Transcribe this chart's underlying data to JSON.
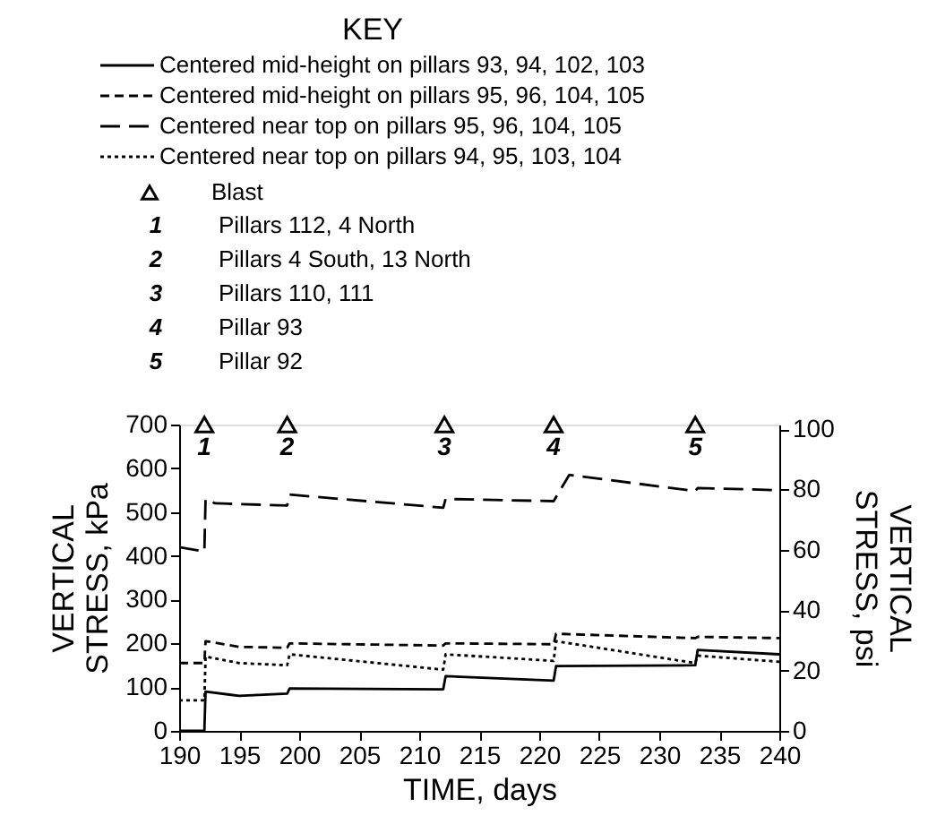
{
  "chart_data": {
    "type": "line",
    "xlabel": "TIME, days",
    "ylabel": "VERTICAL STRESS, kPa",
    "y2label": "VERTICAL STRESS, psi",
    "legend_title": "KEY",
    "xlim": [
      190,
      240
    ],
    "xticks": [
      190,
      195,
      200,
      205,
      210,
      215,
      220,
      225,
      230,
      235,
      240
    ],
    "ylim": [
      0,
      700
    ],
    "yticks": [
      0,
      100,
      200,
      300,
      400,
      500,
      600,
      700
    ],
    "y2lim": [
      0,
      101.5
    ],
    "y2ticks": [
      0,
      20,
      40,
      60,
      80,
      100
    ],
    "grid": false,
    "legend": "top",
    "series": [
      {
        "name": "Centered mid-height on pillars 93, 94, 102, 103",
        "color": "#000000",
        "line_style": "solid",
        "x": [
          190,
          192.1,
          192.2,
          195,
          199,
          199.2,
          212,
          212.2,
          221.2,
          221.4,
          233,
          233.2,
          240
        ],
        "values": [
          0,
          0,
          90,
          80,
          85,
          97,
          95,
          125,
          115,
          148,
          150,
          185,
          175
        ]
      },
      {
        "name": "Centered mid-height on pillars 95, 96, 104, 105",
        "color": "#000000",
        "line_style": "dashed",
        "x": [
          190,
          192.1,
          192.2,
          195,
          199,
          199.2,
          212,
          212.2,
          221.2,
          221.4,
          233,
          233.2,
          240
        ],
        "values": [
          155,
          155,
          205,
          192,
          190,
          200,
          195,
          200,
          198,
          222,
          212,
          215,
          212
        ]
      },
      {
        "name": "Centered near top on pillars 95, 96, 104, 105",
        "color": "#000000",
        "line_style": "dashed",
        "x": [
          190,
          192.1,
          192.2,
          193,
          199,
          199.2,
          212,
          212.2,
          221.2,
          222.5,
          233,
          233.2,
          240
        ],
        "values": [
          420,
          410,
          530,
          520,
          515,
          540,
          510,
          530,
          525,
          585,
          548,
          555,
          550
        ]
      },
      {
        "name": "Centered near top on pillars 94, 95, 103, 104",
        "color": "#000000",
        "line_style": "dotted",
        "x": [
          190,
          192.1,
          192.2,
          195,
          199,
          199.2,
          212,
          212.2,
          221.2,
          221.4,
          233,
          233.2,
          240
        ],
        "values": [
          70,
          70,
          170,
          155,
          150,
          175,
          140,
          175,
          160,
          205,
          155,
          172,
          158
        ]
      },
      {
        "name": "Blast",
        "type": "scatter",
        "marker": "triangle",
        "color": "#000000",
        "x": [
          192.1,
          199,
          212.1,
          221.2,
          233
        ],
        "values": [
          700,
          700,
          700,
          700,
          700
        ]
      }
    ],
    "annotations": [
      {
        "text": "1",
        "x": 192.1,
        "y": 700
      },
      {
        "text": "2",
        "x": 199,
        "y": 700
      },
      {
        "text": "3",
        "x": 212.1,
        "y": 700
      },
      {
        "text": "4",
        "x": 221.2,
        "y": 700
      },
      {
        "text": "5",
        "x": 233,
        "y": 700
      },
      "Pillars 112, 4 North",
      "Pillars 4 South, 13 North",
      "Pillars 110, 111",
      "Pillar 93",
      "Pillar 92"
    ]
  }
}
